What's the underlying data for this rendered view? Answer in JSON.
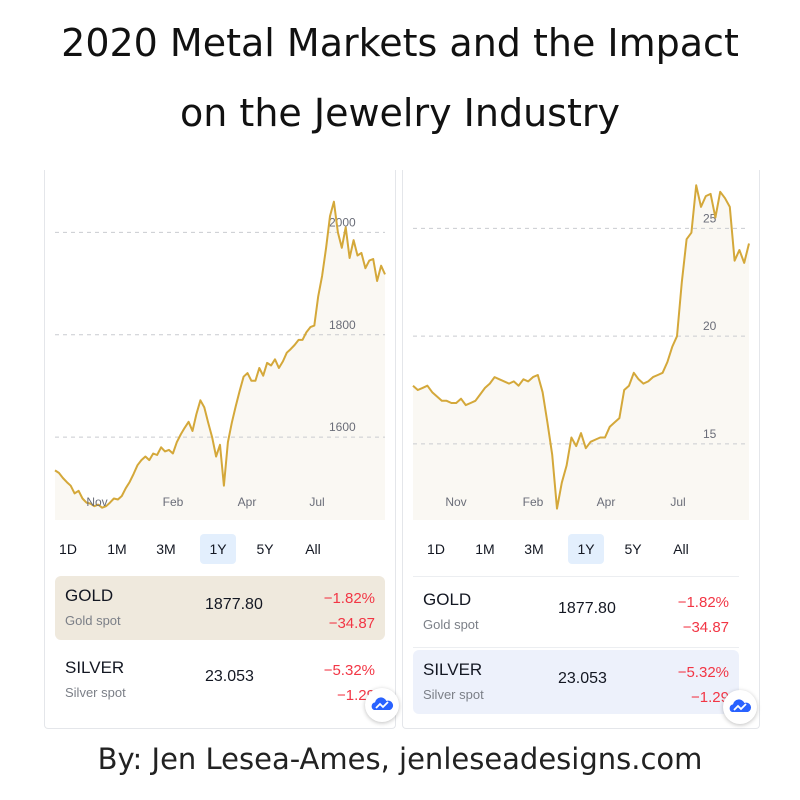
{
  "title_line1": "2020 Metal Markets and the Impact",
  "title_line2": "on the Jewelry Industry",
  "footer": "By: Jen Lesea-Ames, jenleseadesigns.com",
  "colors": {
    "line": "#d4a83a",
    "fill": "#faf8f3",
    "grid": "#c9cbd0",
    "negative": "#f23645",
    "gold_row_bg": "#efe9dd",
    "silver_row_bg": "#edf1fb",
    "tab_active_bg": "#e3effd"
  },
  "tabs": [
    "1D",
    "1M",
    "3M",
    "1Y",
    "5Y",
    "All"
  ],
  "active_tab": "1Y",
  "quotes": {
    "gold": {
      "name": "GOLD",
      "sub": "Gold spot",
      "price": "1877.80",
      "pct": "−1.82%",
      "chg": "−34.87"
    },
    "silver": {
      "name": "SILVER",
      "sub": "Silver spot",
      "price": "23.053",
      "pct": "−5.32%",
      "chg": "−1.29"
    }
  },
  "badge_icon": "cloud-chart-icon",
  "chart_data": [
    {
      "type": "line",
      "series": [
        {
          "values": [
            1535,
            1530,
            1520,
            1512,
            1505,
            1490,
            1495,
            1480,
            1472,
            1470,
            1465,
            1468,
            1462,
            1465,
            1472,
            1480,
            1478,
            1485,
            1500,
            1512,
            1528,
            1545,
            1555,
            1562,
            1555,
            1568,
            1565,
            1580,
            1572,
            1575,
            1568,
            1590,
            1605,
            1618,
            1630,
            1612,
            1645,
            1672,
            1658,
            1628,
            1600,
            1562,
            1585,
            1505,
            1590,
            1628,
            1660,
            1690,
            1718,
            1725,
            1710,
            1710,
            1735,
            1720,
            1745,
            1740,
            1752,
            1735,
            1748,
            1765,
            1772,
            1780,
            1790,
            1790,
            1805,
            1815,
            1818,
            1875,
            1915,
            1970,
            2032,
            2060,
            2000,
            1970,
            2010,
            1950,
            1985,
            1955,
            1960,
            1930,
            1945,
            1948,
            1905,
            1935,
            1918
          ]
        }
      ],
      "x_ticks": [
        "Nov",
        "Feb",
        "Apr",
        "Jul"
      ],
      "y_ticks": [
        1600,
        1800,
        2000
      ],
      "ylim": [
        1438,
        2122
      ],
      "grid": true
    },
    {
      "type": "line",
      "series": [
        {
          "values": [
            17.7,
            17.5,
            17.6,
            17.7,
            17.4,
            17.2,
            17.0,
            17.0,
            16.9,
            16.9,
            17.1,
            16.8,
            16.9,
            17.0,
            17.3,
            17.6,
            17.8,
            18.1,
            18.0,
            17.9,
            17.8,
            17.9,
            17.7,
            18.0,
            17.9,
            18.1,
            18.2,
            17.4,
            16.0,
            14.5,
            12.0,
            13.2,
            14.0,
            15.3,
            14.9,
            15.5,
            14.8,
            15.1,
            15.2,
            15.3,
            15.3,
            15.8,
            16.0,
            16.2,
            17.5,
            17.7,
            18.3,
            18.0,
            17.8,
            17.9,
            18.1,
            18.2,
            18.3,
            18.8,
            19.5,
            20.0,
            22.5,
            24.5,
            24.8,
            27.0,
            26.0,
            26.5,
            26.6,
            25.5,
            26.7,
            26.4,
            26.0,
            23.5,
            24.0,
            23.4,
            24.3
          ]
        }
      ],
      "x_ticks": [
        "Nov",
        "Feb",
        "Apr",
        "Jul"
      ],
      "y_ticks": [
        15,
        20,
        25
      ],
      "ylim": [
        11.47,
        27.71
      ],
      "grid": true
    }
  ]
}
